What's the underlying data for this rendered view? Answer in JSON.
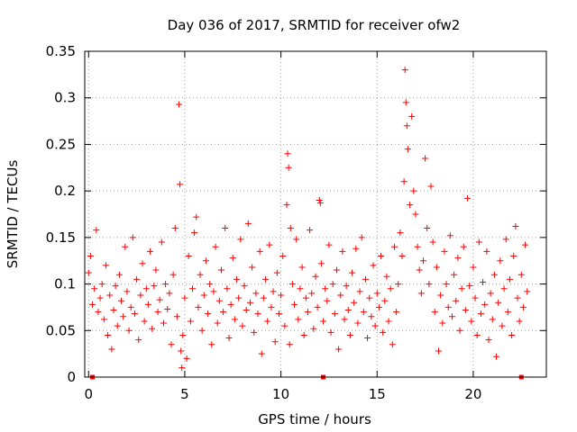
{
  "chart_data": {
    "type": "scatter",
    "title": "Day 036 of 2017, SRMTID for receiver ofw2",
    "xlabel": "GPS time / hours",
    "ylabel": "SRMTID / TECUs",
    "xlim": [
      -0.2,
      23.8
    ],
    "ylim": [
      0,
      0.35
    ],
    "xticks": [
      0,
      5,
      10,
      15,
      20
    ],
    "xtick_labels": [
      "0",
      "5",
      "10",
      "15",
      "20"
    ],
    "yticks": [
      0,
      0.05,
      0.1,
      0.15,
      0.2,
      0.25,
      0.3,
      0.35
    ],
    "ytick_labels": [
      "0",
      "0.05",
      "0.1",
      "0.15",
      "0.2",
      "0.25",
      "0.3",
      "0.35"
    ],
    "grid": true,
    "marker": "+",
    "color": "#ff0000",
    "series": [
      {
        "name": "SRMTID",
        "points": [
          [
            0.0,
            0.112
          ],
          [
            0.1,
            0.13
          ],
          [
            0.2,
            0.078
          ],
          [
            0.3,
            0.095
          ],
          [
            0.4,
            0.158
          ],
          [
            0.5,
            0.07
          ],
          [
            0.6,
            0.085
          ],
          [
            0.7,
            0.1
          ],
          [
            0.8,
            0.062
          ],
          [
            0.9,
            0.12
          ],
          [
            1.0,
            0.045
          ],
          [
            1.1,
            0.088
          ],
          [
            1.2,
            0.03
          ],
          [
            1.3,
            0.072
          ],
          [
            1.4,
            0.098
          ],
          [
            1.5,
            0.055
          ],
          [
            1.6,
            0.11
          ],
          [
            1.7,
            0.082
          ],
          [
            1.8,
            0.065
          ],
          [
            1.9,
            0.14
          ],
          [
            2.0,
            0.092
          ],
          [
            2.1,
            0.05
          ],
          [
            2.2,
            0.075
          ],
          [
            2.3,
            0.15
          ],
          [
            2.4,
            0.068
          ],
          [
            2.5,
            0.105
          ],
          [
            2.6,
            0.04
          ],
          [
            2.7,
            0.088
          ],
          [
            2.8,
            0.122
          ],
          [
            2.9,
            0.06
          ],
          [
            3.0,
            0.095
          ],
          [
            3.1,
            0.078
          ],
          [
            3.2,
            0.135
          ],
          [
            3.3,
            0.052
          ],
          [
            3.4,
            0.098
          ],
          [
            3.5,
            0.115
          ],
          [
            3.6,
            0.07
          ],
          [
            3.7,
            0.083
          ],
          [
            3.8,
            0.145
          ],
          [
            3.9,
            0.058
          ],
          [
            4.0,
            0.1
          ],
          [
            4.1,
            0.073
          ],
          [
            4.2,
            0.09
          ],
          [
            4.3,
            0.035
          ],
          [
            4.4,
            0.11
          ],
          [
            4.5,
            0.16
          ],
          [
            4.6,
            0.065
          ],
          [
            4.7,
            0.293
          ],
          [
            4.75,
            0.207
          ],
          [
            4.8,
            0.028
          ],
          [
            4.85,
            0.01
          ],
          [
            4.9,
            0.045
          ],
          [
            5.0,
            0.085
          ],
          [
            5.1,
            0.02
          ],
          [
            5.2,
            0.13
          ],
          [
            5.3,
            0.06
          ],
          [
            5.4,
            0.095
          ],
          [
            5.5,
            0.155
          ],
          [
            5.6,
            0.172
          ],
          [
            5.7,
            0.075
          ],
          [
            5.8,
            0.11
          ],
          [
            5.9,
            0.05
          ],
          [
            6.0,
            0.088
          ],
          [
            6.1,
            0.125
          ],
          [
            6.2,
            0.068
          ],
          [
            6.3,
            0.1
          ],
          [
            6.4,
            0.035
          ],
          [
            6.5,
            0.092
          ],
          [
            6.6,
            0.14
          ],
          [
            6.7,
            0.058
          ],
          [
            6.8,
            0.082
          ],
          [
            6.9,
            0.115
          ],
          [
            7.0,
            0.07
          ],
          [
            7.1,
            0.16
          ],
          [
            7.2,
            0.095
          ],
          [
            7.3,
            0.042
          ],
          [
            7.4,
            0.078
          ],
          [
            7.5,
            0.128
          ],
          [
            7.6,
            0.062
          ],
          [
            7.7,
            0.105
          ],
          [
            7.8,
            0.085
          ],
          [
            7.9,
            0.148
          ],
          [
            8.0,
            0.055
          ],
          [
            8.1,
            0.098
          ],
          [
            8.2,
            0.072
          ],
          [
            8.3,
            0.165
          ],
          [
            8.4,
            0.08
          ],
          [
            8.5,
            0.118
          ],
          [
            8.6,
            0.048
          ],
          [
            8.7,
            0.09
          ],
          [
            8.8,
            0.068
          ],
          [
            8.9,
            0.135
          ],
          [
            9.0,
            0.025
          ],
          [
            9.1,
            0.085
          ],
          [
            9.2,
            0.105
          ],
          [
            9.3,
            0.06
          ],
          [
            9.4,
            0.142
          ],
          [
            9.5,
            0.075
          ],
          [
            9.6,
            0.092
          ],
          [
            9.7,
            0.038
          ],
          [
            9.8,
            0.112
          ],
          [
            9.9,
            0.068
          ],
          [
            10.0,
            0.088
          ],
          [
            10.1,
            0.13
          ],
          [
            10.2,
            0.055
          ],
          [
            10.3,
            0.185
          ],
          [
            10.35,
            0.24
          ],
          [
            10.4,
            0.225
          ],
          [
            10.45,
            0.035
          ],
          [
            10.5,
            0.16
          ],
          [
            10.6,
            0.1
          ],
          [
            10.7,
            0.078
          ],
          [
            10.8,
            0.148
          ],
          [
            10.9,
            0.062
          ],
          [
            11.0,
            0.095
          ],
          [
            11.1,
            0.118
          ],
          [
            11.2,
            0.045
          ],
          [
            11.3,
            0.085
          ],
          [
            11.4,
            0.07
          ],
          [
            11.5,
            0.158
          ],
          [
            11.6,
            0.09
          ],
          [
            11.7,
            0.052
          ],
          [
            11.8,
            0.108
          ],
          [
            11.9,
            0.075
          ],
          [
            12.0,
            0.19
          ],
          [
            12.05,
            0.187
          ],
          [
            12.1,
            0.122
          ],
          [
            12.2,
            0.06
          ],
          [
            12.3,
            0.095
          ],
          [
            12.4,
            0.082
          ],
          [
            12.5,
            0.142
          ],
          [
            12.6,
            0.048
          ],
          [
            12.7,
            0.1
          ],
          [
            12.8,
            0.068
          ],
          [
            12.9,
            0.115
          ],
          [
            13.0,
            0.03
          ],
          [
            13.1,
            0.088
          ],
          [
            13.2,
            0.135
          ],
          [
            13.3,
            0.062
          ],
          [
            13.4,
            0.098
          ],
          [
            13.5,
            0.072
          ],
          [
            13.6,
            0.045
          ],
          [
            13.7,
            0.112
          ],
          [
            13.8,
            0.08
          ],
          [
            13.9,
            0.138
          ],
          [
            14.0,
            0.058
          ],
          [
            14.1,
            0.092
          ],
          [
            14.2,
            0.15
          ],
          [
            14.3,
            0.07
          ],
          [
            14.4,
            0.105
          ],
          [
            14.5,
            0.042
          ],
          [
            14.6,
            0.085
          ],
          [
            14.7,
            0.065
          ],
          [
            14.8,
            0.12
          ],
          [
            14.9,
            0.055
          ],
          [
            15.0,
            0.09
          ],
          [
            15.1,
            0.075
          ],
          [
            15.2,
            0.13
          ],
          [
            15.3,
            0.048
          ],
          [
            15.4,
            0.082
          ],
          [
            15.5,
            0.108
          ],
          [
            15.6,
            0.06
          ],
          [
            15.7,
            0.095
          ],
          [
            15.8,
            0.035
          ],
          [
            15.9,
            0.14
          ],
          [
            16.0,
            0.07
          ],
          [
            16.1,
            0.1
          ],
          [
            16.2,
            0.155
          ],
          [
            16.3,
            0.13
          ],
          [
            16.4,
            0.21
          ],
          [
            16.45,
            0.33
          ],
          [
            16.5,
            0.295
          ],
          [
            16.55,
            0.27
          ],
          [
            16.6,
            0.245
          ],
          [
            16.7,
            0.185
          ],
          [
            16.8,
            0.28
          ],
          [
            16.9,
            0.2
          ],
          [
            17.0,
            0.175
          ],
          [
            17.1,
            0.14
          ],
          [
            17.2,
            0.115
          ],
          [
            17.3,
            0.09
          ],
          [
            17.4,
            0.125
          ],
          [
            17.5,
            0.235
          ],
          [
            17.6,
            0.16
          ],
          [
            17.7,
            0.1
          ],
          [
            17.8,
            0.205
          ],
          [
            17.9,
            0.145
          ],
          [
            18.0,
            0.07
          ],
          [
            18.1,
            0.118
          ],
          [
            18.2,
            0.028
          ],
          [
            18.3,
            0.088
          ],
          [
            18.4,
            0.058
          ],
          [
            18.5,
            0.135
          ],
          [
            18.6,
            0.1
          ],
          [
            18.7,
            0.075
          ],
          [
            18.8,
            0.152
          ],
          [
            18.9,
            0.065
          ],
          [
            19.0,
            0.11
          ],
          [
            19.1,
            0.082
          ],
          [
            19.2,
            0.128
          ],
          [
            19.3,
            0.05
          ],
          [
            19.4,
            0.095
          ],
          [
            19.5,
            0.14
          ],
          [
            19.6,
            0.072
          ],
          [
            19.7,
            0.192
          ],
          [
            19.8,
            0.098
          ],
          [
            19.9,
            0.06
          ],
          [
            20.0,
            0.118
          ],
          [
            20.1,
            0.085
          ],
          [
            20.2,
            0.045
          ],
          [
            20.3,
            0.145
          ],
          [
            20.4,
            0.068
          ],
          [
            20.5,
            0.102
          ],
          [
            20.6,
            0.078
          ],
          [
            20.7,
            0.135
          ],
          [
            20.8,
            0.04
          ],
          [
            20.9,
            0.09
          ],
          [
            21.0,
            0.062
          ],
          [
            21.1,
            0.11
          ],
          [
            21.2,
            0.022
          ],
          [
            21.3,
            0.08
          ],
          [
            21.4,
            0.125
          ],
          [
            21.5,
            0.055
          ],
          [
            21.6,
            0.095
          ],
          [
            21.7,
            0.148
          ],
          [
            21.8,
            0.07
          ],
          [
            21.9,
            0.105
          ],
          [
            22.0,
            0.045
          ],
          [
            22.1,
            0.13
          ],
          [
            22.2,
            0.162
          ],
          [
            22.3,
            0.085
          ],
          [
            22.4,
            0.06
          ],
          [
            22.5,
            0.11
          ],
          [
            22.6,
            0.075
          ],
          [
            22.7,
            0.142
          ],
          [
            22.8,
            0.092
          ]
        ]
      }
    ],
    "zero_markers": [
      0.2,
      12.2,
      22.5
    ]
  }
}
